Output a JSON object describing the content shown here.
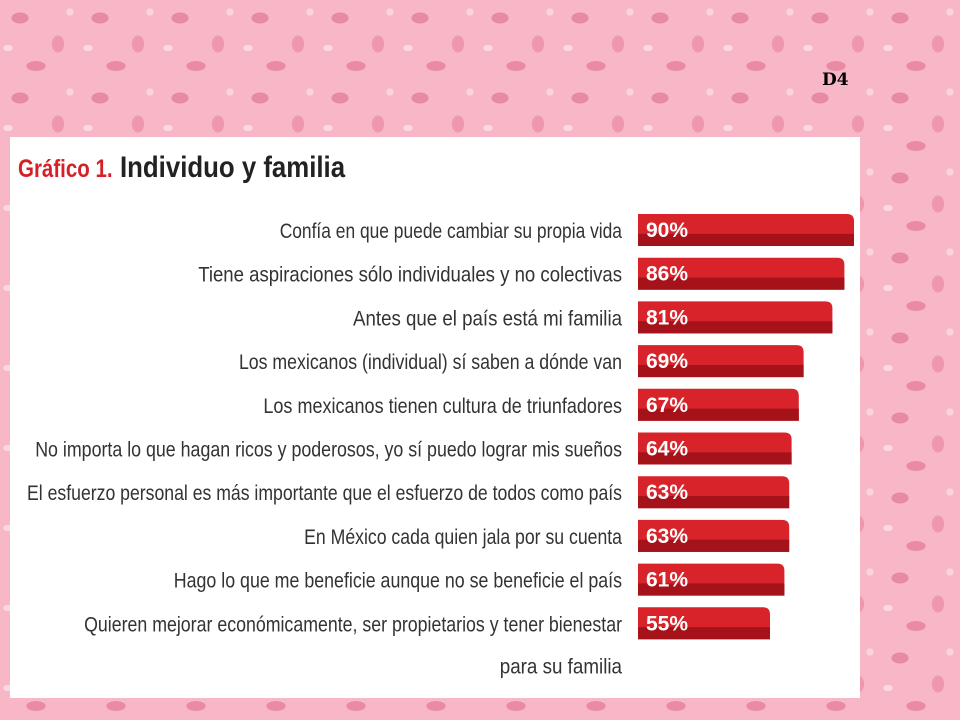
{
  "slide_tag": "D4",
  "colors": {
    "bar": "#d8232a",
    "bar_dark": "#a5121a",
    "title_accent": "#d62027",
    "label": "#333333"
  },
  "chart_data": {
    "type": "bar",
    "orientation": "horizontal",
    "title_prefix": "Gráfico 1.",
    "title": "Individuo y familia",
    "categories": [
      "Confía en que puede cambiar su propia vida",
      "Tiene aspiraciones sólo individuales y no colectivas",
      "Antes que el país está mi familia",
      "Los mexicanos (individual) sí saben a dónde van",
      "Los mexicanos tienen cultura de triunfadores",
      "No importa lo que hagan ricos y poderosos, yo sí puedo lograr mis sueños",
      "El esfuerzo personal es más importante que el esfuerzo de todos como país",
      "En México cada quien jala por su cuenta",
      "Hago lo que me beneficie aunque no se beneficie el país",
      "Quieren mejorar económicamente, ser propietarios y tener bienestar para su familia"
    ],
    "values": [
      90,
      86,
      81,
      69,
      67,
      64,
      63,
      63,
      61,
      55
    ],
    "value_labels": [
      "90%",
      "86%",
      "81%",
      "69%",
      "67%",
      "64%",
      "63%",
      "63%",
      "61%",
      "55%"
    ],
    "unit": "%",
    "xlim": [
      0,
      100
    ]
  }
}
